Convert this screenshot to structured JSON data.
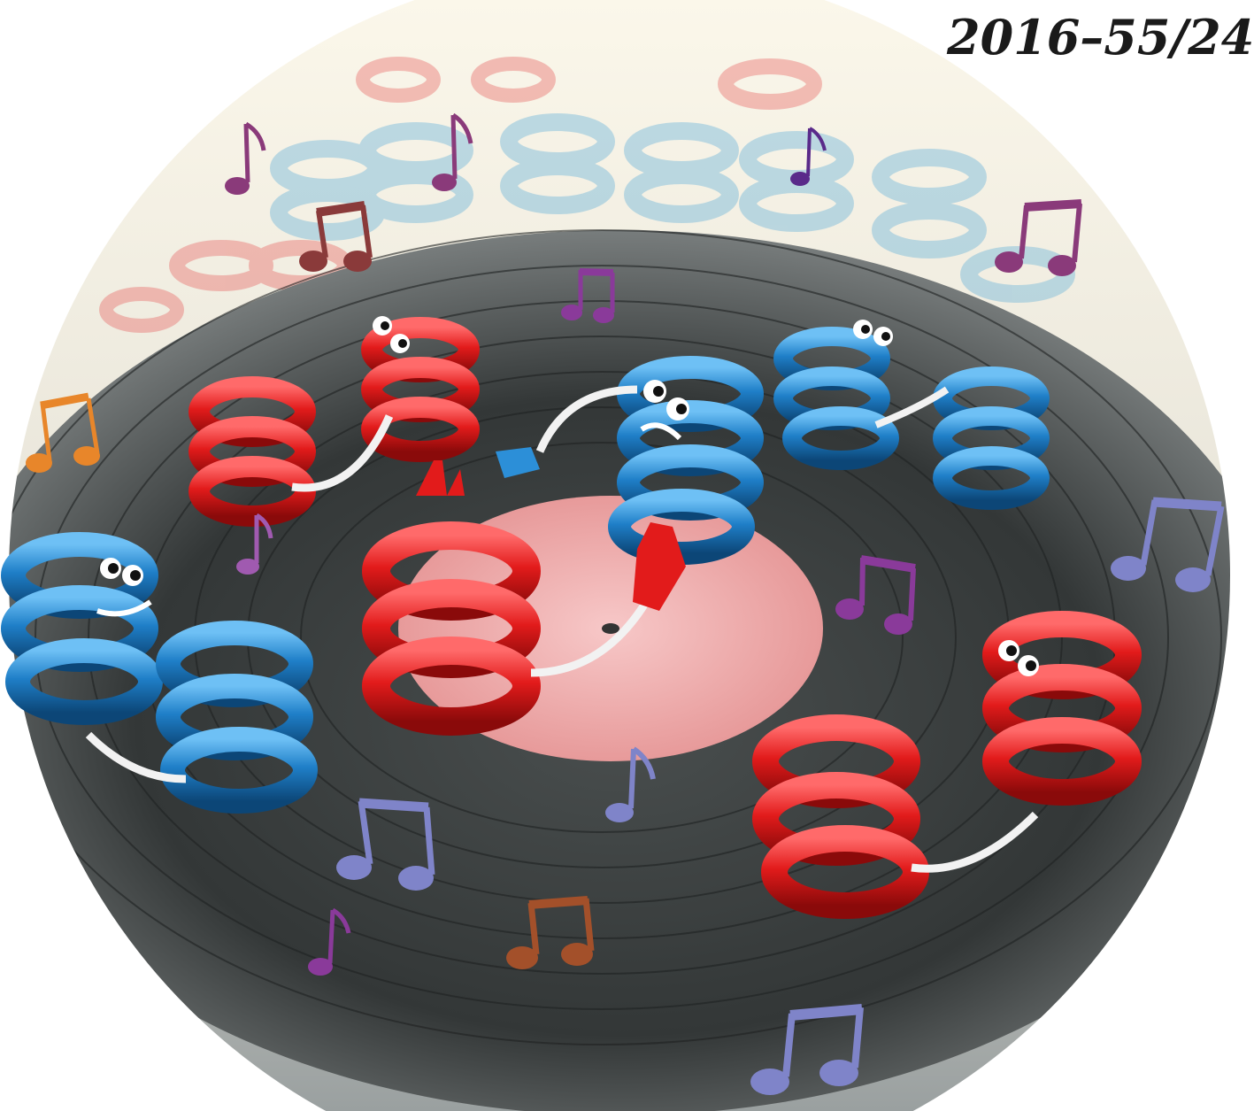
{
  "issue_label": "2016–55/24",
  "colors": {
    "helix_red": "#e21b1b",
    "helix_blue": "#1f7fc8",
    "record_dark": "#2f3333",
    "record_label_pink": "#f2b3b3",
    "wall_light": "#f4f1e6",
    "note_purple": "#8a3a9a",
    "note_blue": "#7f84c9",
    "note_brown": "#8a3a3a",
    "note_orange": "#e8862a"
  },
  "icons": [
    "vinyl-record",
    "helix-character",
    "music-note",
    "double-music-note"
  ]
}
